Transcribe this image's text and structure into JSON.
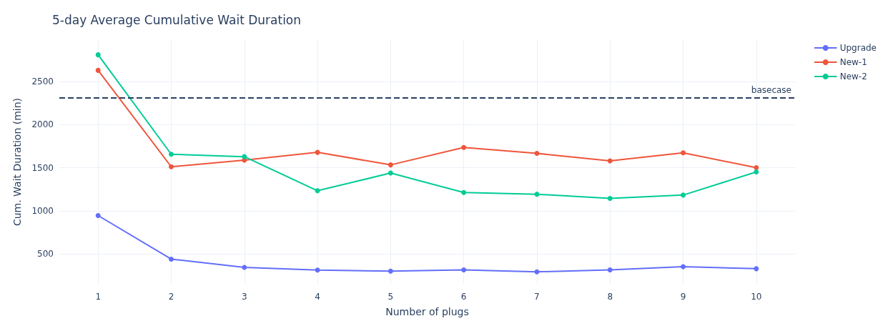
{
  "chart_data": {
    "type": "line",
    "title": "5-day Average Cumulative Wait Duration",
    "xlabel": "Number of plugs",
    "ylabel": "Cum. Wait Duration (min)",
    "x": [
      1,
      2,
      3,
      4,
      5,
      6,
      7,
      8,
      9,
      10
    ],
    "series": [
      {
        "name": "Upgrade",
        "color": "#636efa",
        "values": [
          947,
          442,
          347,
          315,
          303,
          318,
          295,
          318,
          354,
          331
        ]
      },
      {
        "name": "New-1",
        "color": "#ef553b",
        "values": [
          2629,
          1512,
          1588,
          1679,
          1534,
          1736,
          1667,
          1581,
          1673,
          1502
        ]
      },
      {
        "name": "New-2",
        "color": "#00cc96",
        "values": [
          2809,
          1657,
          1629,
          1234,
          1439,
          1214,
          1194,
          1145,
          1184,
          1452
        ]
      }
    ],
    "xlim": [
      0.47,
      10.53
    ],
    "xticks": [
      1,
      2,
      3,
      4,
      5,
      6,
      7,
      8,
      9,
      10
    ],
    "ylim": [
      156,
      2980
    ],
    "yticks": [
      500,
      1000,
      1500,
      2000,
      2500
    ],
    "ref_lines": [
      {
        "axis": "y",
        "value": 2308,
        "label": "basecase",
        "color": "#2a3f5f",
        "line_style": "dashed"
      }
    ],
    "grid": true,
    "legend": "top right",
    "marker": "circle",
    "line_style": "solid"
  }
}
